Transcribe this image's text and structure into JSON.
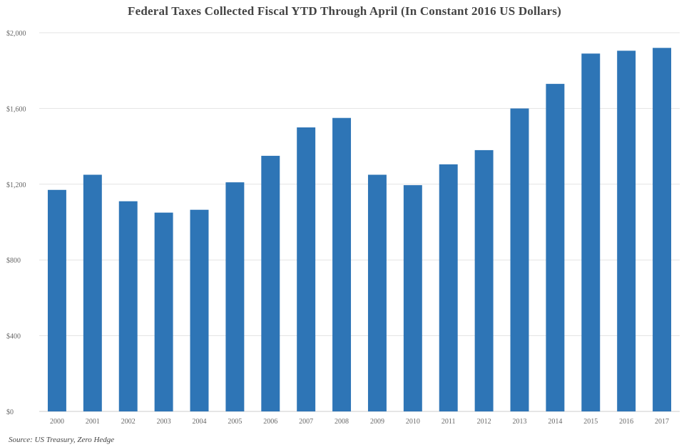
{
  "chart_data": {
    "type": "bar",
    "title": "Federal Taxes Collected Fiscal YTD Through April (In Constant 2016 US Dollars)",
    "xlabel": "",
    "ylabel": "",
    "categories": [
      "2000",
      "2001",
      "2002",
      "2003",
      "2004",
      "2005",
      "2006",
      "2007",
      "2008",
      "2009",
      "2010",
      "2011",
      "2012",
      "2013",
      "2014",
      "2015",
      "2016",
      "2017"
    ],
    "values": [
      1170,
      1250,
      1110,
      1050,
      1065,
      1210,
      1350,
      1500,
      1550,
      1250,
      1195,
      1305,
      1380,
      1600,
      1730,
      1890,
      1905,
      1920
    ],
    "ylim": [
      0,
      2000
    ],
    "yticks": [
      0,
      400,
      800,
      1200,
      1600,
      2000
    ],
    "ytick_labels": [
      "$0",
      "$400",
      "$800",
      "$1,200",
      "$1,600",
      "$2,000"
    ],
    "bar_color": "#2e75b6",
    "grid": true,
    "legend": "none"
  },
  "source": "Source: US Treasury, Zero Hedge"
}
